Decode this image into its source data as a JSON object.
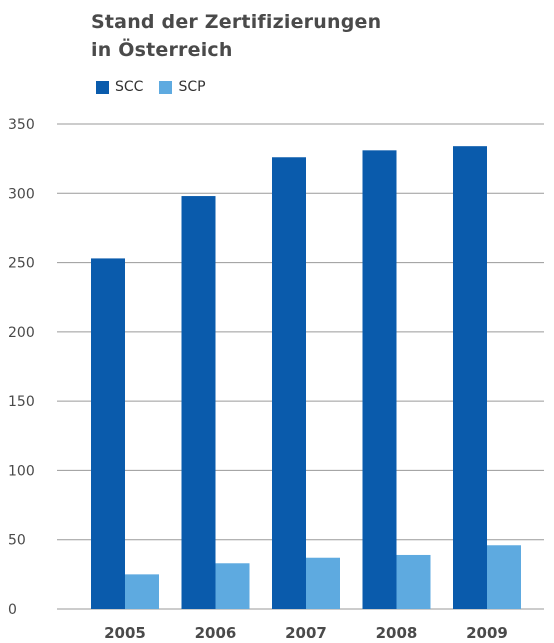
{
  "chart_data": {
    "type": "bar",
    "title_lines": [
      "Stand der Zertifizierungen",
      "in Österreich"
    ],
    "categories": [
      "2005",
      "2006",
      "2007",
      "2008",
      "2009"
    ],
    "series": [
      {
        "name": "SCC",
        "color": "#0a5bac",
        "values": [
          253,
          298,
          326,
          331,
          334
        ]
      },
      {
        "name": "SCP",
        "color": "#5eaae0",
        "values": [
          25,
          33,
          37,
          39,
          46
        ]
      }
    ],
    "yticks": [
      0,
      50,
      100,
      150,
      200,
      250,
      300,
      350
    ],
    "ylim": [
      0,
      350
    ],
    "grid": true,
    "legend_position": "top-left"
  }
}
